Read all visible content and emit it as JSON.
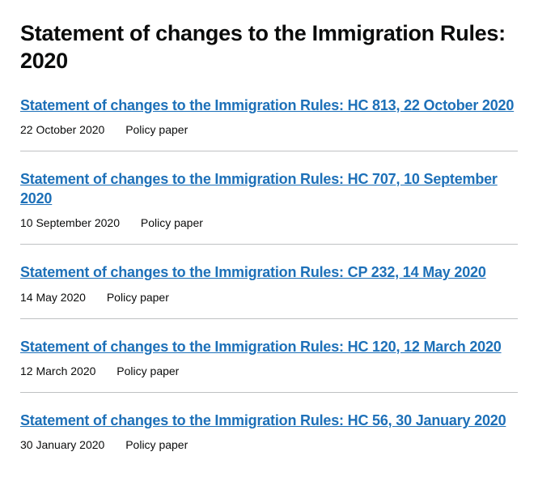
{
  "page": {
    "title": "Statement of changes to the Immigration Rules: 2020"
  },
  "documents": [
    {
      "title": "Statement of changes to the Immigration Rules: HC 813, 22 October 2020",
      "date": "22 October 2020",
      "type": "Policy paper"
    },
    {
      "title": "Statement of changes to the Immigration Rules: HC 707, 10 September 2020",
      "date": "10 September 2020",
      "type": "Policy paper"
    },
    {
      "title": "Statement of changes to the Immigration Rules: CP 232, 14 May 2020",
      "date": "14 May 2020",
      "type": "Policy paper"
    },
    {
      "title": "Statement of changes to the Immigration Rules: HC 120, 12 March 2020",
      "date": "12 March 2020",
      "type": "Policy paper"
    },
    {
      "title": "Statement of changes to the Immigration Rules: HC 56, 30 January 2020",
      "date": "30 January 2020",
      "type": "Policy paper"
    }
  ],
  "colors": {
    "text": "#0b0c0c",
    "link": "#1d70b8",
    "border": "#bfc1c3",
    "background": "#ffffff"
  }
}
